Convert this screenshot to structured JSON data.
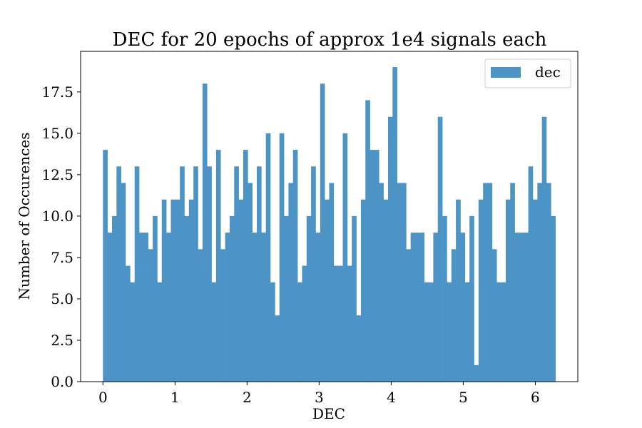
{
  "chart_data": {
    "type": "bar",
    "title": "DEC for 20 epochs of approx 1e4 signals each",
    "xlabel": "DEC",
    "ylabel": "Number of Occurences",
    "xlim": [
      -0.31,
      6.59
    ],
    "ylim": [
      0,
      19.95
    ],
    "xticks": [
      0,
      1,
      2,
      3,
      4,
      5,
      6
    ],
    "xtick_labels": [
      "0",
      "1",
      "2",
      "3",
      "4",
      "5",
      "6"
    ],
    "yticks": [
      0,
      2.5,
      5,
      7.5,
      10,
      12.5,
      15,
      17.5
    ],
    "ytick_labels": [
      "0.0",
      "2.5",
      "5.0",
      "7.5",
      "10.0",
      "12.5",
      "15.0",
      "17.5"
    ],
    "grid": false,
    "legend_position": "top-right",
    "bin_start": 0.0,
    "bin_end": 6.28,
    "series": [
      {
        "name": "dec",
        "color": "#4c94c6",
        "values": [
          14,
          9,
          10,
          13,
          12,
          7,
          6,
          13,
          9,
          9,
          8,
          10,
          6,
          11,
          9,
          11,
          11,
          13,
          10,
          11,
          13,
          8,
          18,
          13,
          6,
          14,
          8,
          9,
          10,
          13,
          11,
          14,
          12,
          9,
          13,
          9,
          15,
          6,
          4,
          15,
          10,
          12,
          14,
          6,
          7,
          10,
          13,
          9,
          18,
          11,
          12,
          7,
          7,
          15,
          7,
          10,
          4,
          11,
          17,
          14,
          14,
          12,
          11,
          16,
          19,
          12,
          12,
          8,
          9,
          9,
          9,
          6,
          6,
          9,
          16,
          10,
          6,
          8,
          11,
          9,
          6,
          10,
          1,
          11,
          12,
          12,
          8,
          6,
          6,
          11,
          12,
          9,
          9,
          9,
          13,
          11,
          12,
          16,
          12,
          10
        ]
      }
    ]
  }
}
